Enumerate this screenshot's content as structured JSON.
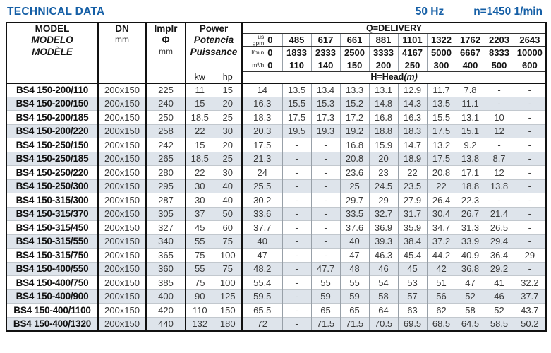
{
  "title": "TECHNICAL DATA",
  "frequency": "50 Hz",
  "speed": "n=1450 1/min",
  "colors": {
    "accent": "#155fa6",
    "row_alt": "#dee4eb",
    "border_heavy": "#111111",
    "border_thin": "#98a0a8"
  },
  "table": {
    "model_header": {
      "line1": "MODEL",
      "line2": "MODELO",
      "line3": "MODÈLE"
    },
    "dn_header": {
      "label": "DN",
      "unit": "mm"
    },
    "impeller_header": {
      "line1": "Implr",
      "line2": "Φ",
      "unit": "mm"
    },
    "power_header": {
      "line1": "Power",
      "line2": "Potencia",
      "line3": "Puissance",
      "units": [
        "kw",
        "hp"
      ]
    },
    "delivery": {
      "title": "Q=DELIVERY",
      "unit_rows": [
        {
          "label_lines": [
            "us",
            "gpm"
          ],
          "values": [
            "0",
            "485",
            "617",
            "661",
            "881",
            "1101",
            "1322",
            "1762",
            "2203",
            "2643"
          ]
        },
        {
          "label_lines": [
            "l/min"
          ],
          "values": [
            "0",
            "1833",
            "2333",
            "2500",
            "3333",
            "4167",
            "5000",
            "6667",
            "8333",
            "10000"
          ]
        },
        {
          "label_lines": [
            "m³/h"
          ],
          "values": [
            "0",
            "110",
            "140",
            "150",
            "200",
            "250",
            "300",
            "400",
            "500",
            "600"
          ]
        }
      ],
      "head_label": "H=Head",
      "head_unit": "(m)"
    },
    "rows": [
      {
        "model": "BS4 150-200/110",
        "dn": "200x150",
        "impeller": "225",
        "kw": "11",
        "hp": "15",
        "head": [
          "14",
          "13.5",
          "13.4",
          "13.3",
          "13.1",
          "12.9",
          "11.7",
          "7.8",
          "-",
          "-"
        ]
      },
      {
        "model": "BS4 150-200/150",
        "dn": "200x150",
        "impeller": "240",
        "kw": "15",
        "hp": "20",
        "head": [
          "16.3",
          "15.5",
          "15.3",
          "15.2",
          "14.8",
          "14.3",
          "13.5",
          "11.1",
          "-",
          "-"
        ]
      },
      {
        "model": "BS4 150-200/185",
        "dn": "200x150",
        "impeller": "250",
        "kw": "18.5",
        "hp": "25",
        "head": [
          "18.3",
          "17.5",
          "17.3",
          "17.2",
          "16.8",
          "16.3",
          "15.5",
          "13.1",
          "10",
          "-"
        ]
      },
      {
        "model": "BS4 150-200/220",
        "dn": "200x150",
        "impeller": "258",
        "kw": "22",
        "hp": "30",
        "head": [
          "20.3",
          "19.5",
          "19.3",
          "19.2",
          "18.8",
          "18.3",
          "17.5",
          "15.1",
          "12",
          "-"
        ]
      },
      {
        "model": "BS4 150-250/150",
        "dn": "200x150",
        "impeller": "242",
        "kw": "15",
        "hp": "20",
        "head": [
          "17.5",
          "-",
          "-",
          "16.8",
          "15.9",
          "14.7",
          "13.2",
          "9.2",
          "-",
          "-"
        ]
      },
      {
        "model": "BS4 150-250/185",
        "dn": "200x150",
        "impeller": "265",
        "kw": "18.5",
        "hp": "25",
        "head": [
          "21.3",
          "-",
          "-",
          "20.8",
          "20",
          "18.9",
          "17.5",
          "13.8",
          "8.7",
          "-"
        ]
      },
      {
        "model": "BS4 150-250/220",
        "dn": "200x150",
        "impeller": "280",
        "kw": "22",
        "hp": "30",
        "head": [
          "24",
          "-",
          "-",
          "23.6",
          "23",
          "22",
          "20.8",
          "17.1",
          "12",
          "-"
        ]
      },
      {
        "model": "BS4 150-250/300",
        "dn": "200x150",
        "impeller": "295",
        "kw": "30",
        "hp": "40",
        "head": [
          "25.5",
          "-",
          "-",
          "25",
          "24.5",
          "23.5",
          "22",
          "18.8",
          "13.8",
          "-"
        ]
      },
      {
        "model": "BS4 150-315/300",
        "dn": "200x150",
        "impeller": "287",
        "kw": "30",
        "hp": "40",
        "head": [
          "30.2",
          "-",
          "-",
          "29.7",
          "29",
          "27.9",
          "26.4",
          "22.3",
          "-",
          "-"
        ]
      },
      {
        "model": "BS4 150-315/370",
        "dn": "200x150",
        "impeller": "305",
        "kw": "37",
        "hp": "50",
        "head": [
          "33.6",
          "-",
          "-",
          "33.5",
          "32.7",
          "31.7",
          "30.4",
          "26.7",
          "21.4",
          "-"
        ]
      },
      {
        "model": "BS4 150-315/450",
        "dn": "200x150",
        "impeller": "327",
        "kw": "45",
        "hp": "60",
        "head": [
          "37.7",
          "-",
          "-",
          "37.6",
          "36.9",
          "35.9",
          "34.7",
          "31.3",
          "26.5",
          "-"
        ]
      },
      {
        "model": "BS4 150-315/550",
        "dn": "200x150",
        "impeller": "340",
        "kw": "55",
        "hp": "75",
        "head": [
          "40",
          "-",
          "-",
          "40",
          "39.3",
          "38.4",
          "37.2",
          "33.9",
          "29.4",
          "-"
        ]
      },
      {
        "model": "BS4 150-315/750",
        "dn": "200x150",
        "impeller": "365",
        "kw": "75",
        "hp": "100",
        "head": [
          "47",
          "-",
          "-",
          "47",
          "46.3",
          "45.4",
          "44.2",
          "40.9",
          "36.4",
          "29"
        ]
      },
      {
        "model": "BS4 150-400/550",
        "dn": "200x150",
        "impeller": "360",
        "kw": "55",
        "hp": "75",
        "head": [
          "48.2",
          "-",
          "47.7",
          "48",
          "46",
          "45",
          "42",
          "36.8",
          "29.2",
          "-"
        ]
      },
      {
        "model": "BS4 150-400/750",
        "dn": "200x150",
        "impeller": "385",
        "kw": "75",
        "hp": "100",
        "head": [
          "55.4",
          "-",
          "55",
          "55",
          "54",
          "53",
          "51",
          "47",
          "41",
          "32.2"
        ]
      },
      {
        "model": "BS4 150-400/900",
        "dn": "200x150",
        "impeller": "400",
        "kw": "90",
        "hp": "125",
        "head": [
          "59.5",
          "-",
          "59",
          "59",
          "58",
          "57",
          "56",
          "52",
          "46",
          "37.7"
        ]
      },
      {
        "model": "BS4 150-400/1100",
        "dn": "200x150",
        "impeller": "420",
        "kw": "110",
        "hp": "150",
        "head": [
          "65.5",
          "-",
          "65",
          "65",
          "64",
          "63",
          "62",
          "58",
          "52",
          "43.7"
        ]
      },
      {
        "model": "BS4 150-400/1320",
        "dn": "200x150",
        "impeller": "440",
        "kw": "132",
        "hp": "180",
        "head": [
          "72",
          "-",
          "71.5",
          "71.5",
          "70.5",
          "69.5",
          "68.5",
          "64.5",
          "58.5",
          "50.2"
        ]
      }
    ]
  }
}
